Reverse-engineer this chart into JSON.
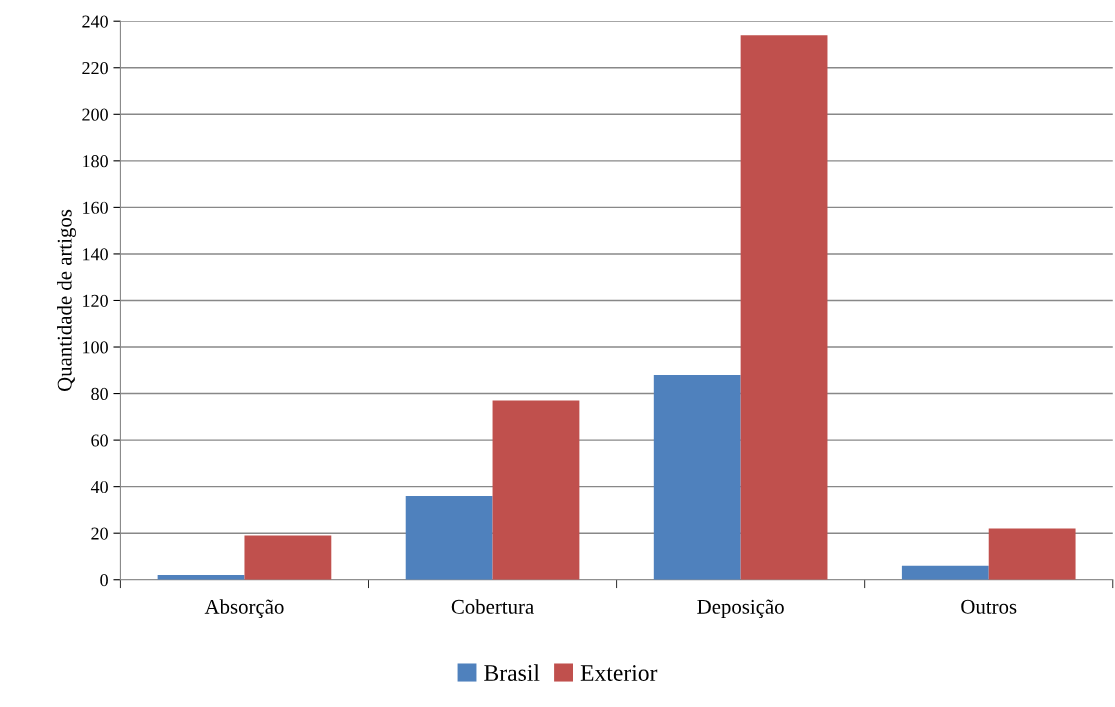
{
  "chart_data": {
    "type": "bar",
    "ylabel": "Quantidade de artigos",
    "categories": [
      "Absorção",
      "Cobertura",
      "Deposição",
      "Outros"
    ],
    "series": [
      {
        "name": "Brasil",
        "color": "#4f81bd",
        "values": [
          2,
          36,
          88,
          6
        ]
      },
      {
        "name": "Exterior",
        "color": "#c0504d",
        "values": [
          19,
          77,
          234,
          22
        ]
      }
    ],
    "ylim": [
      0,
      240
    ],
    "yticks": [
      0,
      20,
      40,
      60,
      80,
      100,
      120,
      140,
      160,
      180,
      200,
      220,
      240
    ],
    "grid": "y",
    "legend": "bottom"
  }
}
